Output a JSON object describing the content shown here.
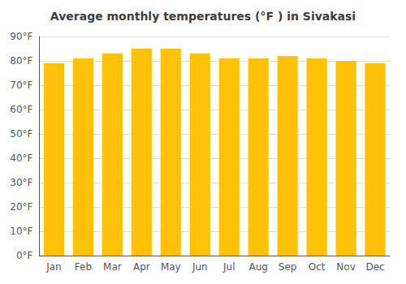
{
  "chart_data": {
    "type": "bar",
    "title": "Average monthly temperatures (°F ) in Sivakasi",
    "categories": [
      "Jan",
      "Feb",
      "Mar",
      "Apr",
      "May",
      "Jun",
      "Jul",
      "Aug",
      "Sep",
      "Oct",
      "Nov",
      "Dec"
    ],
    "values": [
      79,
      81,
      83,
      85,
      85,
      83,
      81,
      81,
      82,
      81,
      80,
      79
    ],
    "color": "#FFC107",
    "ylim": [
      0,
      90
    ],
    "yticks": [
      {
        "value": 0,
        "label": "0°F"
      },
      {
        "value": 10,
        "label": "10°F"
      },
      {
        "value": 20,
        "label": "20°F"
      },
      {
        "value": 30,
        "label": "30°F"
      },
      {
        "value": 40,
        "label": "40°F"
      },
      {
        "value": 50,
        "label": "50°F"
      },
      {
        "value": 60,
        "label": "60°F"
      },
      {
        "value": 70,
        "label": "70°F"
      },
      {
        "value": 80,
        "label": "80°F"
      },
      {
        "value": 90,
        "label": "90°F"
      }
    ],
    "grid": true
  }
}
